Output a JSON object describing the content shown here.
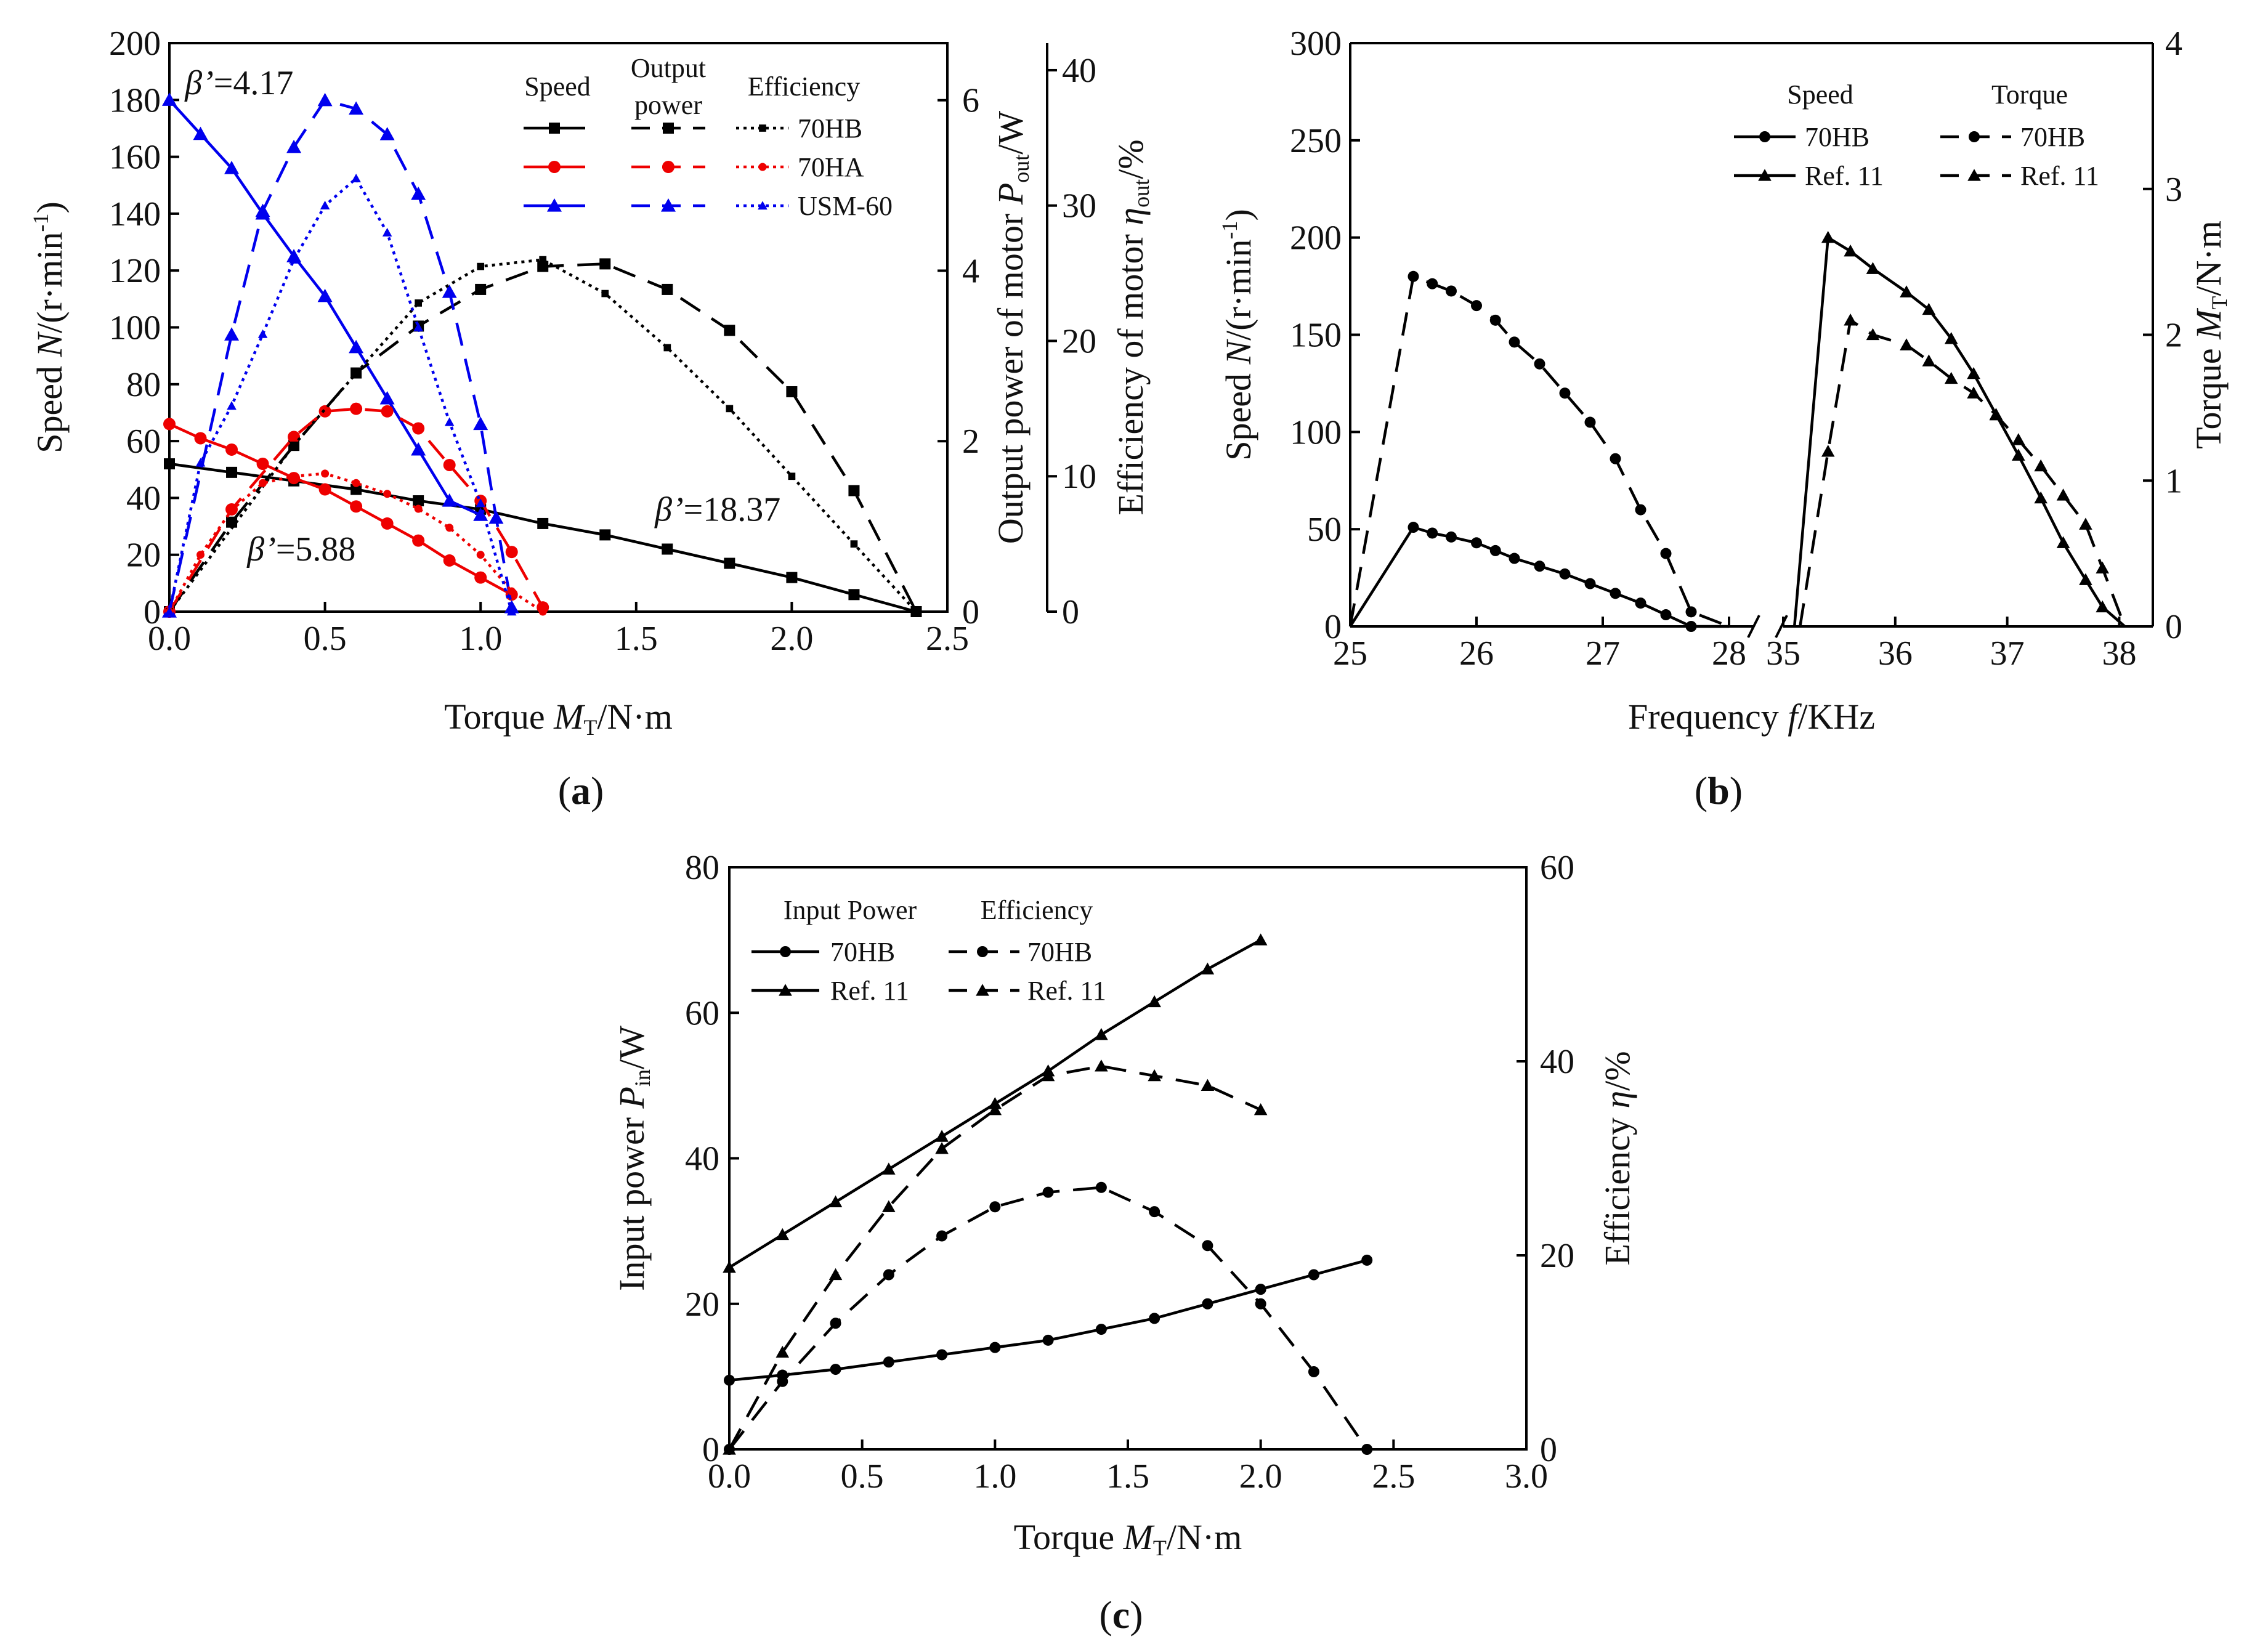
{
  "chart_data": [
    {
      "id": "a",
      "type": "line",
      "panel_label": "(a)",
      "panel_letter": "a",
      "xlabel": "Torque M_T/N·m",
      "xlabel_parts": {
        "pre": "Torque ",
        "var": "M",
        "sub": "T",
        "post": "/N·m"
      },
      "ylabel": "Speed N/(r·min-1)",
      "ylabel_parts": {
        "pre": "Speed ",
        "var": "N",
        "post": "/(r·min",
        "sup": "-1",
        "end": ")"
      },
      "y2label": "Output power of motor P_out/W",
      "y2label_parts": {
        "pre": "Output power of motor ",
        "var": "P",
        "sub": "out",
        "post": "/W"
      },
      "y3label": "Efficiency of motor η_out/%",
      "y3label_parts": {
        "pre": "Efficiency of motor ",
        "var": "η",
        "sub": "out",
        "post": "/%"
      },
      "xlim": [
        0,
        2.5
      ],
      "ylim": [
        0,
        200
      ],
      "y2lim": [
        0,
        6.67
      ],
      "y3lim": [
        0,
        42
      ],
      "xticks": [
        "0.0",
        "0.5",
        "1.0",
        "1.5",
        "2.0",
        "2.5"
      ],
      "xtick_values": [
        0,
        0.5,
        1.0,
        1.5,
        2.0,
        2.5
      ],
      "yticks": [
        "0",
        "20",
        "40",
        "60",
        "80",
        "100",
        "120",
        "140",
        "160",
        "180",
        "200"
      ],
      "ytick_values": [
        0,
        20,
        40,
        60,
        80,
        100,
        120,
        140,
        160,
        180,
        200
      ],
      "y2ticks": [
        "0",
        "2",
        "4",
        "6"
      ],
      "y2tick_values": [
        0,
        2,
        4,
        6
      ],
      "y3ticks": [
        "0",
        "10",
        "20",
        "30",
        "40"
      ],
      "y3tick_values": [
        0,
        10,
        20,
        30,
        40
      ],
      "legend": {
        "headers": {
          "speed": "Speed",
          "output_l1": "Output",
          "output_l2": "power",
          "efficiency": "Efficiency"
        },
        "rows": [
          "70HB",
          "70HA",
          "USM-60"
        ]
      },
      "annotations": [
        {
          "var": "β’",
          "text": "=4.17",
          "x": 0.05,
          "y": 182
        },
        {
          "var": "β’",
          "text": "=18.37",
          "x": 1.56,
          "y": 32
        },
        {
          "var": "β’",
          "text": "=5.88",
          "x": 0.25,
          "y": 18
        }
      ],
      "series": [
        {
          "name": "70HB speed",
          "axis": "y",
          "color": "#000000",
          "dash": "",
          "marker": "square",
          "msize": 1.0,
          "x": [
            0,
            0.2,
            0.4,
            0.6,
            0.8,
            1.0,
            1.2,
            1.4,
            1.6,
            1.8,
            2.0,
            2.2,
            2.4
          ],
          "y": [
            52,
            49,
            46,
            43,
            39,
            36,
            31,
            27,
            22,
            17,
            12,
            6,
            0
          ]
        },
        {
          "name": "70HA speed",
          "axis": "y",
          "color": "#ee0000",
          "dash": "",
          "marker": "circle",
          "msize": 1.0,
          "x": [
            0,
            0.1,
            0.2,
            0.3,
            0.4,
            0.5,
            0.6,
            0.7,
            0.8,
            0.9,
            1.0,
            1.1
          ],
          "y": [
            66,
            61,
            57,
            52,
            47,
            43,
            37,
            31,
            25,
            18,
            12,
            6
          ]
        },
        {
          "name": "USM-60 speed",
          "axis": "y",
          "color": "#0000ee",
          "dash": "",
          "marker": "triangle",
          "msize": 1.0,
          "x": [
            0,
            0.1,
            0.2,
            0.3,
            0.4,
            0.5,
            0.6,
            0.7,
            0.8,
            0.9,
            1.0
          ],
          "y": [
            180,
            168,
            156,
            140,
            125,
            111,
            93,
            75,
            57,
            39,
            34
          ]
        },
        {
          "name": "70HB output power",
          "axis": "y2",
          "color": "#000000",
          "dash": "38 22",
          "marker": "square",
          "msize": 1.0,
          "x": [
            0,
            0.2,
            0.4,
            0.6,
            0.8,
            1.0,
            1.2,
            1.4,
            1.6,
            1.8,
            2.0,
            2.2,
            2.4
          ],
          "y": [
            0,
            1.05,
            1.95,
            2.8,
            3.35,
            3.78,
            4.05,
            4.08,
            3.78,
            3.3,
            2.58,
            1.42,
            0
          ]
        },
        {
          "name": "70HA output power",
          "axis": "y2",
          "color": "#ee0000",
          "dash": "38 22",
          "marker": "circle",
          "msize": 1.0,
          "x": [
            0,
            0.2,
            0.4,
            0.5,
            0.6,
            0.7,
            0.8,
            0.9,
            1.0,
            1.1,
            1.2
          ],
          "y": [
            0,
            1.2,
            2.05,
            2.35,
            2.38,
            2.35,
            2.15,
            1.72,
            1.3,
            0.7,
            0.05
          ]
        },
        {
          "name": "USM-60 output power",
          "axis": "y2",
          "color": "#0000ee",
          "dash": "38 22",
          "marker": "triangle",
          "msize": 1.0,
          "x": [
            0,
            0.2,
            0.3,
            0.4,
            0.5,
            0.6,
            0.7,
            0.8,
            0.9,
            1.0,
            1.05,
            1.1
          ],
          "y": [
            0,
            3.25,
            4.7,
            5.45,
            6.0,
            5.9,
            5.6,
            4.9,
            3.75,
            2.2,
            1.1,
            0.05
          ]
        },
        {
          "name": "70HB efficiency",
          "axis": "y3",
          "color": "#000000",
          "dash": "5 7",
          "marker": "square",
          "msize": 0.65,
          "x": [
            0,
            0.4,
            0.6,
            0.8,
            1.0,
            1.2,
            1.4,
            1.6,
            1.8,
            2.0,
            2.2,
            2.4
          ],
          "y": [
            0,
            12.3,
            17.6,
            22.8,
            25.5,
            26.0,
            23.5,
            19.5,
            15.0,
            10.0,
            5.0,
            0
          ]
        },
        {
          "name": "70HA efficiency",
          "axis": "y3",
          "color": "#ee0000",
          "dash": "5 7",
          "marker": "circle",
          "msize": 0.65,
          "x": [
            0,
            0.1,
            0.2,
            0.3,
            0.4,
            0.5,
            0.6,
            0.7,
            0.8,
            0.9,
            1.0,
            1.1,
            1.2
          ],
          "y": [
            0,
            4.2,
            7.5,
            9.5,
            10.0,
            10.2,
            9.5,
            8.7,
            7.6,
            6.2,
            4.2,
            1.5,
            0
          ]
        },
        {
          "name": "USM-60 efficiency",
          "axis": "y3",
          "color": "#0000ee",
          "dash": "5 7",
          "marker": "triangle",
          "msize": 0.65,
          "x": [
            0,
            0.1,
            0.2,
            0.3,
            0.4,
            0.5,
            0.6,
            0.7,
            0.8,
            0.9,
            1.0,
            1.1
          ],
          "y": [
            0,
            11.0,
            15.2,
            20.5,
            26.0,
            30.0,
            32.0,
            28.0,
            21.0,
            14.0,
            8.0,
            0
          ]
        }
      ]
    },
    {
      "id": "b",
      "type": "line",
      "panel_label": "(b)",
      "panel_letter": "b",
      "xlabel": "Frequency f/KHz",
      "xlabel_parts": {
        "pre": "Frequency ",
        "var": "f",
        "post": "/KHz"
      },
      "ylabel": "Speed N/(r·min-1)",
      "ylabel_parts": {
        "pre": "Speed ",
        "var": "N",
        "post": "/(r·min",
        "sup": "-1",
        "end": ")"
      },
      "y2label": "Torque M_T/N·m",
      "y2label_parts": {
        "pre": "Torque ",
        "var": "M",
        "sub": "T",
        "post": "/N·m"
      },
      "xlim_left": [
        25,
        28.2
      ],
      "xlim_right": [
        35,
        38.3
      ],
      "ylim": [
        0,
        300
      ],
      "y2lim": [
        0,
        4
      ],
      "xticks_left": [
        "25",
        "26",
        "27",
        "28"
      ],
      "xtick_values_left": [
        25,
        26,
        27,
        28
      ],
      "xticks_right": [
        "35",
        "36",
        "37",
        "38"
      ],
      "xtick_values_right": [
        35,
        36,
        37,
        38
      ],
      "yticks": [
        "0",
        "50",
        "100",
        "150",
        "200",
        "250",
        "300"
      ],
      "ytick_values": [
        0,
        50,
        100,
        150,
        200,
        250,
        300
      ],
      "y2ticks": [
        "0",
        "1",
        "2",
        "3",
        "4"
      ],
      "y2tick_values": [
        0,
        1,
        2,
        3,
        4
      ],
      "legend": {
        "headers": {
          "speed": "Speed",
          "torque": "Torque"
        },
        "rows": [
          "70HB",
          "Ref. 11"
        ]
      },
      "series": [
        {
          "name": "70HB speed",
          "axis": "y",
          "segment": "left",
          "color": "#000000",
          "dash": "",
          "marker": "circle",
          "x": [
            25.0,
            25.5,
            25.65,
            25.8,
            26.0,
            26.15,
            26.3,
            26.5,
            26.7,
            26.9,
            27.1,
            27.3,
            27.5,
            27.7,
            28.0
          ],
          "y": [
            0,
            51,
            48,
            46,
            43,
            39,
            35,
            31,
            27,
            22,
            17,
            12,
            6,
            0,
            0
          ],
          "marked": [
            false,
            true,
            true,
            true,
            true,
            true,
            true,
            true,
            true,
            true,
            true,
            true,
            true,
            true,
            false
          ]
        },
        {
          "name": "Ref. 11 speed",
          "axis": "y",
          "segment": "right",
          "color": "#000000",
          "dash": "",
          "marker": "triangle",
          "x": [
            35.1,
            35.4,
            35.6,
            35.8,
            36.1,
            36.3,
            36.5,
            36.7,
            36.9,
            37.1,
            37.3,
            37.5,
            37.7,
            37.85,
            38.05
          ],
          "y": [
            0,
            200,
            193,
            184,
            172,
            163,
            148,
            130,
            109,
            88,
            66,
            43,
            24,
            10,
            0
          ],
          "marked": [
            false,
            true,
            true,
            true,
            true,
            true,
            true,
            true,
            true,
            true,
            true,
            true,
            true,
            true,
            false
          ]
        },
        {
          "name": "70HB torque",
          "axis": "y2",
          "segment": "left",
          "color": "#000000",
          "dash": "38 22",
          "marker": "circle",
          "x": [
            25.0,
            25.5,
            25.65,
            25.8,
            26.0,
            26.15,
            26.3,
            26.5,
            26.7,
            26.9,
            27.1,
            27.3,
            27.5,
            27.7,
            28.0
          ],
          "y": [
            0,
            2.4,
            2.35,
            2.3,
            2.2,
            2.1,
            1.95,
            1.8,
            1.6,
            1.4,
            1.15,
            0.8,
            0.5,
            0.1,
            0
          ],
          "marked": [
            false,
            true,
            true,
            true,
            true,
            true,
            true,
            true,
            true,
            true,
            true,
            true,
            true,
            true,
            false
          ]
        },
        {
          "name": "Ref. 11 torque",
          "axis": "y2",
          "segment": "right",
          "color": "#000000",
          "dash": "38 22",
          "marker": "triangle",
          "x": [
            35.15,
            35.4,
            35.6,
            35.8,
            36.1,
            36.3,
            36.5,
            36.7,
            36.9,
            37.1,
            37.3,
            37.5,
            37.7,
            37.85,
            38.05
          ],
          "y": [
            0,
            1.2,
            2.1,
            2.0,
            1.93,
            1.82,
            1.7,
            1.6,
            1.45,
            1.28,
            1.1,
            0.9,
            0.7,
            0.4,
            0
          ],
          "marked": [
            false,
            true,
            true,
            true,
            true,
            true,
            true,
            true,
            true,
            true,
            true,
            true,
            true,
            true,
            false
          ]
        }
      ]
    },
    {
      "id": "c",
      "type": "line",
      "panel_label": "(c)",
      "panel_letter": "c",
      "xlabel": "Torque M_T/N·m",
      "xlabel_parts": {
        "pre": "Torque ",
        "var": "M",
        "sub": "T",
        "post": "/N·m"
      },
      "ylabel": "Input power P_in/W",
      "ylabel_parts": {
        "pre": "Input power ",
        "var": "P",
        "sub": "in",
        "post": "/W"
      },
      "y2label": "Efficiency η/%",
      "y2label_parts": {
        "pre": "Efficiency ",
        "var": "η",
        "post": "/%"
      },
      "xlim": [
        0,
        3.0
      ],
      "ylim": [
        0,
        80
      ],
      "y2lim": [
        0,
        60
      ],
      "xticks": [
        "0.0",
        "0.5",
        "1.0",
        "1.5",
        "2.0",
        "2.5",
        "3.0"
      ],
      "xtick_values": [
        0,
        0.5,
        1.0,
        1.5,
        2.0,
        2.5,
        3.0
      ],
      "yticks": [
        "0",
        "20",
        "40",
        "60",
        "80"
      ],
      "ytick_values": [
        0,
        20,
        40,
        60,
        80
      ],
      "y2ticks": [
        "0",
        "20",
        "40",
        "60"
      ],
      "y2tick_values": [
        0,
        20,
        40,
        60
      ],
      "legend": {
        "headers": {
          "input": "Input Power",
          "efficiency": "Efficiency"
        },
        "rows": [
          "70HB",
          "Ref. 11"
        ]
      },
      "series": [
        {
          "name": "70HB input power",
          "axis": "y",
          "color": "#000000",
          "dash": "",
          "marker": "circle",
          "x": [
            0,
            0.2,
            0.4,
            0.6,
            0.8,
            1.0,
            1.2,
            1.4,
            1.6,
            1.8,
            2.0,
            2.2,
            2.4
          ],
          "y": [
            9.5,
            10.2,
            11.0,
            12.0,
            13.0,
            14.0,
            15.0,
            16.5,
            18.0,
            20.0,
            22.0,
            24.0,
            26.0
          ]
        },
        {
          "name": "Ref. 11 input power",
          "axis": "y",
          "color": "#000000",
          "dash": "",
          "marker": "triangle",
          "x": [
            0,
            0.2,
            0.4,
            0.6,
            0.8,
            1.0,
            1.2,
            1.4,
            1.6,
            1.8,
            2.0
          ],
          "y": [
            25,
            29.5,
            34.0,
            38.5,
            43.0,
            47.5,
            52.0,
            57.0,
            61.5,
            66.0,
            70.0
          ]
        },
        {
          "name": "70HB efficiency",
          "axis": "y2",
          "color": "#000000",
          "dash": "38 22",
          "marker": "circle",
          "x": [
            0,
            0.2,
            0.4,
            0.6,
            0.8,
            1.0,
            1.2,
            1.4,
            1.6,
            1.8,
            2.0,
            2.2,
            2.4
          ],
          "y": [
            0,
            7.0,
            13.0,
            18.0,
            22.0,
            25.0,
            26.5,
            27.0,
            24.5,
            21.0,
            15.0,
            8.0,
            0
          ]
        },
        {
          "name": "Ref. 11 efficiency",
          "axis": "y2",
          "color": "#000000",
          "dash": "38 22",
          "marker": "triangle",
          "x": [
            0,
            0.2,
            0.4,
            0.6,
            0.8,
            1.0,
            1.2,
            1.4,
            1.6,
            1.8,
            2.0
          ],
          "y": [
            0,
            10.0,
            18.0,
            25.0,
            31.0,
            35.0,
            38.5,
            39.5,
            38.5,
            37.5,
            35.0
          ]
        }
      ]
    }
  ]
}
